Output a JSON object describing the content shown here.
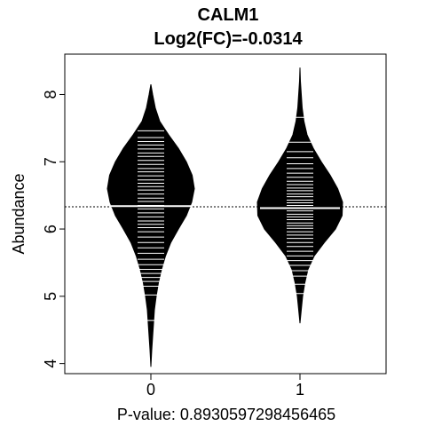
{
  "chart_data": {
    "type": "beanplot",
    "title": "CALM1",
    "subtitle": "Log2(FC)=-0.0314",
    "xlabel": "P-value: 0.8930597298456465",
    "ylabel": "Abundance",
    "ylim": [
      3.85,
      8.6
    ],
    "yticks": [
      4,
      5,
      6,
      7,
      8
    ],
    "categories": [
      "0",
      "1"
    ],
    "overall_mean": 6.33,
    "groups": [
      {
        "name": "0",
        "mean": 6.34,
        "min": 3.95,
        "max": 8.15,
        "density": [
          [
            3.95,
            0.0
          ],
          [
            4.2,
            0.02
          ],
          [
            4.5,
            0.05
          ],
          [
            4.8,
            0.08
          ],
          [
            5.0,
            0.12
          ],
          [
            5.2,
            0.17
          ],
          [
            5.4,
            0.24
          ],
          [
            5.6,
            0.33
          ],
          [
            5.8,
            0.45
          ],
          [
            6.0,
            0.62
          ],
          [
            6.2,
            0.8
          ],
          [
            6.4,
            0.92
          ],
          [
            6.6,
            0.98
          ],
          [
            6.8,
            0.93
          ],
          [
            7.0,
            0.8
          ],
          [
            7.2,
            0.62
          ],
          [
            7.4,
            0.4
          ],
          [
            7.6,
            0.2
          ],
          [
            7.8,
            0.1
          ],
          [
            8.0,
            0.04
          ],
          [
            8.15,
            0.0
          ]
        ],
        "observations": [
          4.64,
          5.02,
          5.15,
          5.22,
          5.28,
          5.34,
          5.4,
          5.47,
          5.55,
          5.64,
          5.72,
          5.8,
          5.88,
          5.96,
          6.02,
          6.07,
          6.12,
          6.18,
          6.24,
          6.3,
          6.35,
          6.41,
          6.46,
          6.52,
          6.58,
          6.63,
          6.68,
          6.73,
          6.79,
          6.85,
          6.9,
          6.96,
          7.02,
          7.08,
          7.13,
          7.19,
          7.25,
          7.3,
          7.36,
          7.46
        ]
      },
      {
        "name": "1",
        "mean": 6.31,
        "min": 4.6,
        "max": 8.4,
        "density": [
          [
            4.6,
            0.0
          ],
          [
            4.8,
            0.03
          ],
          [
            5.0,
            0.06
          ],
          [
            5.2,
            0.11
          ],
          [
            5.4,
            0.18
          ],
          [
            5.6,
            0.32
          ],
          [
            5.8,
            0.55
          ],
          [
            6.0,
            0.8
          ],
          [
            6.2,
            0.95
          ],
          [
            6.4,
            0.96
          ],
          [
            6.6,
            0.85
          ],
          [
            6.8,
            0.68
          ],
          [
            7.0,
            0.48
          ],
          [
            7.2,
            0.3
          ],
          [
            7.4,
            0.16
          ],
          [
            7.6,
            0.09
          ],
          [
            7.8,
            0.05
          ],
          [
            8.0,
            0.03
          ],
          [
            8.2,
            0.01
          ],
          [
            8.4,
            0.0
          ]
        ],
        "observations": [
          5.04,
          5.18,
          5.3,
          5.38,
          5.46,
          5.53,
          5.6,
          5.67,
          5.74,
          5.8,
          5.86,
          5.91,
          5.96,
          6.01,
          6.05,
          6.09,
          6.14,
          6.18,
          6.22,
          6.27,
          6.31,
          6.35,
          6.39,
          6.43,
          6.48,
          6.52,
          6.57,
          6.61,
          6.66,
          6.71,
          6.77,
          6.83,
          6.9,
          6.97,
          7.06,
          7.15,
          7.29,
          7.66
        ]
      }
    ]
  }
}
